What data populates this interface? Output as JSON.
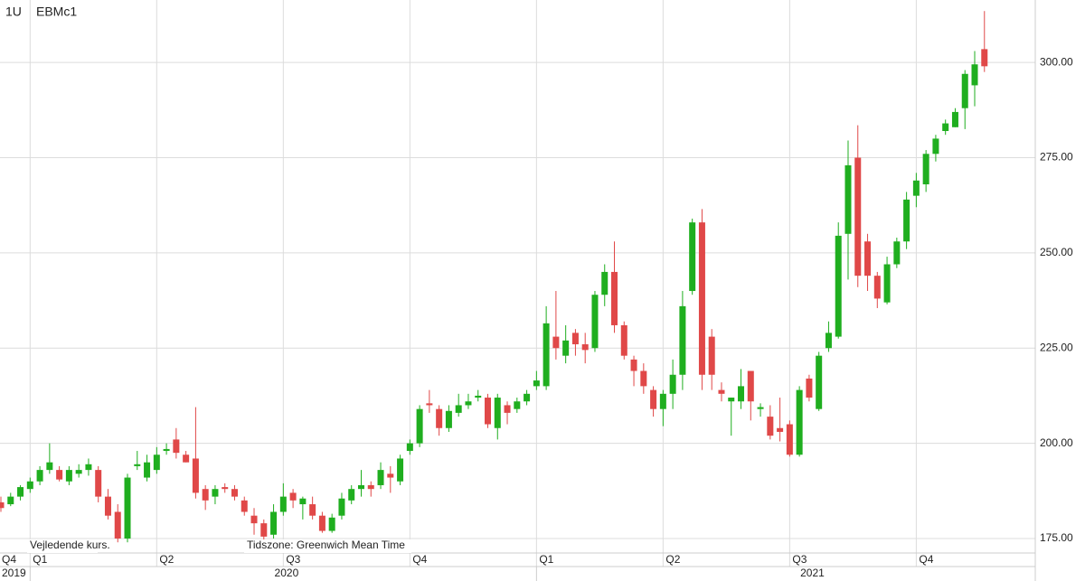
{
  "chart_data": {
    "type": "candlestick",
    "symbol_interval": "1U",
    "symbol": "EBMc1",
    "note_left": "Vejledende kurs.",
    "note_timezone": "Tidszone: Greenwich Mean Time",
    "up_color": "#1fae1f",
    "down_color": "#e04848",
    "grid": true,
    "ylim": [
      171.2,
      316.4
    ],
    "yticks": [
      {
        "value": 175,
        "label": "175.00"
      },
      {
        "value": 200,
        "label": "200.00"
      },
      {
        "value": 225,
        "label": "225.00"
      },
      {
        "value": 250,
        "label": "250.00"
      },
      {
        "value": 275,
        "label": "275.00"
      },
      {
        "value": 300,
        "label": "300.00"
      }
    ],
    "categories": [
      "Q4",
      null,
      null,
      "Q1",
      null,
      null,
      null,
      null,
      null,
      null,
      null,
      null,
      null,
      null,
      null,
      null,
      "Q2",
      null,
      null,
      null,
      null,
      null,
      null,
      null,
      null,
      null,
      null,
      null,
      null,
      "Q3",
      null,
      null,
      null,
      null,
      null,
      null,
      null,
      null,
      null,
      null,
      null,
      null,
      "Q4",
      null,
      null,
      null,
      null,
      null,
      null,
      null,
      null,
      null,
      null,
      null,
      null,
      "Q1",
      null,
      null,
      null,
      null,
      null,
      null,
      null,
      null,
      null,
      null,
      null,
      null,
      "Q2",
      null,
      null,
      null,
      null,
      null,
      null,
      null,
      null,
      null,
      null,
      null,
      null,
      "Q3",
      null,
      null,
      null,
      null,
      null,
      null,
      null,
      null,
      null,
      null,
      null,
      null,
      "Q4",
      null,
      null,
      null,
      null,
      null,
      null,
      null
    ],
    "year_labels": [
      "2019",
      null,
      null,
      null,
      null,
      null,
      null,
      null,
      null,
      null,
      null,
      null,
      null,
      null,
      null,
      null,
      null,
      null,
      null,
      null,
      null,
      null,
      null,
      null,
      null,
      null,
      null,
      null,
      "2020",
      null,
      null,
      null,
      null,
      null,
      null,
      null,
      null,
      null,
      null,
      null,
      null,
      null,
      null,
      null,
      null,
      null,
      null,
      null,
      null,
      null,
      null,
      null,
      null,
      null,
      null,
      null,
      null,
      null,
      null,
      null,
      null,
      null,
      null,
      null,
      null,
      null,
      null,
      null,
      null,
      null,
      null,
      null,
      null,
      null,
      null,
      null,
      null,
      null,
      null,
      null,
      null,
      null,
      "2021",
      null,
      null,
      null,
      null,
      null,
      null,
      null,
      null,
      null,
      null,
      null,
      null,
      null,
      null,
      null,
      null,
      null,
      null,
      null
    ],
    "open": [
      184.5,
      184,
      186,
      188,
      190,
      193,
      193,
      190,
      192,
      193,
      193,
      186,
      182,
      175,
      194,
      191,
      193,
      198,
      201,
      197,
      196,
      188,
      186,
      188.5,
      188,
      185,
      181,
      179,
      176,
      182,
      187,
      184,
      184,
      181,
      177,
      181,
      185,
      188,
      189,
      189,
      192,
      190,
      198,
      200,
      210.5,
      209,
      204,
      208,
      210,
      212,
      212,
      204,
      210,
      209,
      211,
      215,
      215,
      228,
      223,
      229,
      226,
      225,
      239,
      245,
      231,
      222,
      219,
      214,
      209,
      213,
      218,
      240,
      258,
      228,
      214,
      211,
      211,
      219,
      209,
      207,
      204,
      205,
      197,
      217,
      209,
      225,
      228,
      255,
      275,
      253,
      244,
      237,
      247,
      253,
      265,
      268,
      276,
      282,
      283,
      288,
      294,
      303.5
    ],
    "high": [
      186,
      187,
      189,
      191,
      194,
      200,
      194,
      194,
      194.5,
      196,
      194,
      188,
      184,
      192,
      198,
      197,
      199,
      200,
      204,
      198,
      209.5,
      189,
      189,
      189.5,
      189,
      186,
      183,
      180,
      184,
      189.5,
      188,
      186,
      186,
      182,
      181.5,
      187,
      189,
      193,
      190,
      195,
      194,
      197,
      201,
      210,
      214,
      210,
      210,
      213,
      213,
      214,
      213,
      213,
      211,
      212,
      214,
      219,
      236,
      240,
      231,
      230,
      229,
      240,
      247,
      253,
      232,
      223,
      221,
      215,
      214,
      222,
      240,
      259,
      261.5,
      230,
      216,
      212,
      219.5,
      219,
      210.5,
      210,
      212,
      206,
      215,
      218,
      224,
      232,
      258,
      279.5,
      283.5,
      255,
      245,
      249,
      254,
      266,
      271,
      277,
      281,
      285,
      288,
      298,
      303,
      313.5
    ],
    "low": [
      182,
      183.5,
      185,
      187,
      189,
      192,
      190,
      189,
      191,
      191.5,
      184.5,
      180,
      174,
      174,
      193,
      190,
      192,
      197,
      196,
      195,
      185.5,
      182.5,
      184,
      187,
      185,
      181,
      176,
      174,
      175,
      181,
      183,
      180,
      180,
      176.5,
      176.5,
      180,
      184,
      186,
      186,
      188,
      187,
      189,
      197,
      199,
      208,
      202,
      203,
      207,
      209,
      211,
      204,
      201,
      205,
      208,
      210,
      214,
      214,
      222,
      221,
      223,
      221,
      224,
      236,
      229,
      222,
      215,
      213,
      207,
      204.5,
      209,
      214,
      239,
      214,
      214,
      211,
      202,
      209,
      206,
      207,
      201,
      200.5,
      196.5,
      196.5,
      211,
      208.5,
      224,
      227.5,
      243,
      241,
      240,
      235.5,
      236.5,
      246,
      251,
      262,
      266,
      274,
      281,
      283,
      282.5,
      288.5,
      297.5
    ],
    "close": [
      183,
      186,
      188.5,
      190,
      193,
      195,
      190.5,
      193,
      193,
      194.5,
      186,
      181,
      175,
      191,
      194.5,
      195,
      197,
      198.5,
      197.5,
      195,
      187,
      185,
      188,
      188,
      186,
      182,
      179,
      175.5,
      182,
      186,
      185,
      185.5,
      181,
      177,
      180.5,
      185.5,
      188,
      189,
      188,
      193,
      191,
      196,
      200,
      209,
      210,
      204,
      208.5,
      210,
      211,
      212.5,
      205,
      212,
      208,
      211,
      213,
      216.5,
      231.5,
      225,
      227,
      226,
      224.5,
      239,
      245,
      231,
      223,
      219,
      215,
      209,
      213,
      218,
      236,
      258,
      218,
      218,
      213,
      212,
      215,
      211,
      209.5,
      202,
      203,
      197,
      214,
      212,
      223,
      229,
      254.5,
      273,
      244,
      244,
      238,
      247,
      253,
      264,
      269,
      276,
      280,
      284,
      287,
      297,
      299.5,
      299
    ]
  }
}
